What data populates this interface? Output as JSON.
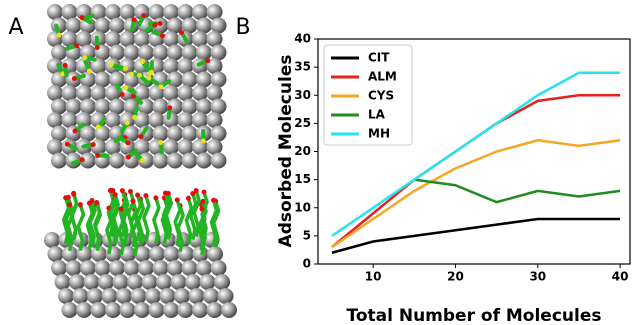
{
  "panel_labels": [
    "A",
    "B"
  ],
  "chart_data": {
    "type": "line",
    "xlabel": "Total Number of Molecules",
    "ylabel": "Adsorbed Molecules",
    "x": [
      5,
      10,
      15,
      20,
      25,
      30,
      35,
      40
    ],
    "series": [
      {
        "name": "CIT",
        "color": "#000000",
        "values": [
          2,
          4,
          5,
          6,
          7,
          8,
          8,
          8
        ]
      },
      {
        "name": "ALM",
        "color": "#e8211a",
        "values": [
          3,
          9,
          15,
          20,
          25,
          29,
          30,
          30
        ]
      },
      {
        "name": "CYS",
        "color": "#f5a623",
        "values": [
          3,
          8,
          13,
          17,
          20,
          22,
          21,
          22
        ]
      },
      {
        "name": "LA",
        "color": "#1e8c1e",
        "values": [
          null,
          null,
          15,
          14,
          11,
          13,
          12,
          13
        ]
      },
      {
        "name": "MH",
        "color": "#22e5f0",
        "values": [
          5,
          10,
          15,
          20,
          25,
          30,
          34,
          34
        ]
      }
    ],
    "xlim": [
      3.3,
      41.2
    ],
    "ylim": [
      0,
      40
    ],
    "xticks": [
      10,
      20,
      30,
      40
    ],
    "yticks": [
      0,
      5,
      10,
      15,
      20,
      25,
      30,
      35,
      40
    ],
    "legend": "upper left"
  }
}
